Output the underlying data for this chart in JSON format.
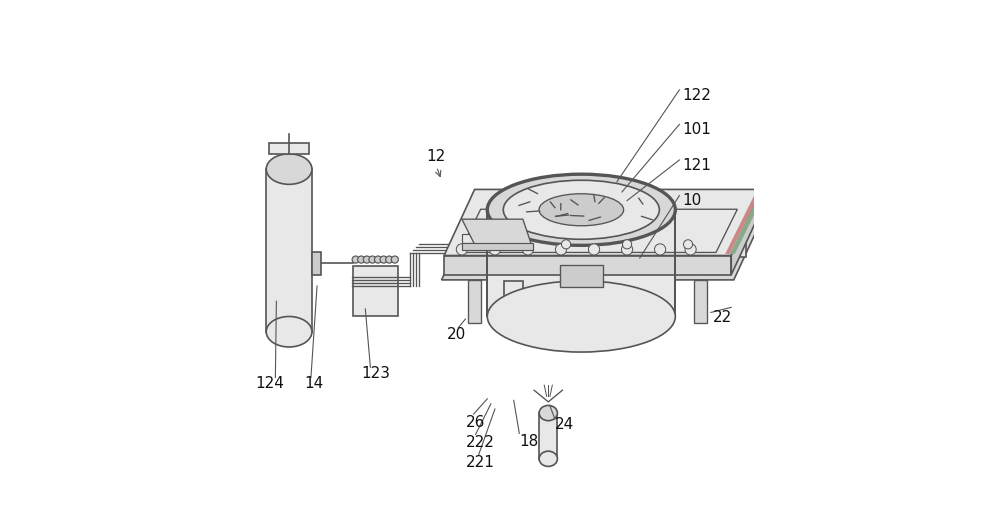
{
  "bg_color": "#ffffff",
  "line_color": "#555555",
  "light_line": "#888888",
  "fill_gray": "#d8d8d8",
  "fill_light": "#e8e8e8",
  "fill_medium": "#cccccc",
  "accent_line": "#999999",
  "label_fontsize": 11
}
